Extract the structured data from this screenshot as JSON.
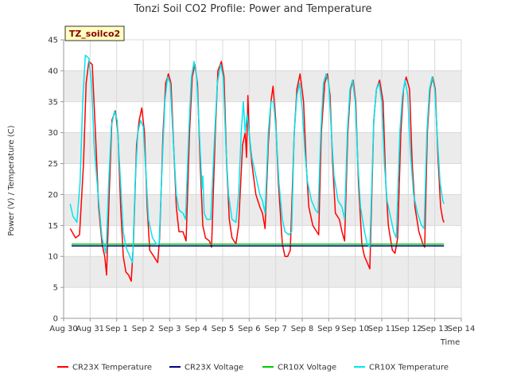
{
  "chart_data": {
    "type": "line",
    "title": "Tonzi Soil CO2 Profile: Power and Temperature",
    "xlabel": "Time",
    "ylabel": "Power (V) / Temperature (C)",
    "badge": "TZ_soilco2",
    "ylim": [
      0,
      45
    ],
    "y_ticks": [
      0,
      5,
      10,
      15,
      20,
      25,
      30,
      35,
      40,
      45
    ],
    "xlim": [
      0,
      15
    ],
    "x_ticks": [
      {
        "pos": 0,
        "label": "Aug 30"
      },
      {
        "pos": 1,
        "label": "Aug 31"
      },
      {
        "pos": 2,
        "label": "Sep 1"
      },
      {
        "pos": 3,
        "label": "Sep 2"
      },
      {
        "pos": 4,
        "label": "Sep 3"
      },
      {
        "pos": 5,
        "label": "Sep 4"
      },
      {
        "pos": 6,
        "label": "Sep 5"
      },
      {
        "pos": 7,
        "label": "Sep 6"
      },
      {
        "pos": 8,
        "label": "Sep 7"
      },
      {
        "pos": 9,
        "label": "Sep 8"
      },
      {
        "pos": 10,
        "label": "Sep 9"
      },
      {
        "pos": 11,
        "label": "Sep 10"
      },
      {
        "pos": 12,
        "label": "Sep 11"
      },
      {
        "pos": 13,
        "label": "Sep 12"
      },
      {
        "pos": 14,
        "label": "Sep 13"
      },
      {
        "pos": 15,
        "label": "Sep 14"
      }
    ],
    "series": [
      {
        "name": "CR23X Temperature",
        "color": "#ff0000",
        "points": [
          [
            0.25,
            14.5
          ],
          [
            0.45,
            13.0
          ],
          [
            0.6,
            13.5
          ],
          [
            0.75,
            25
          ],
          [
            0.85,
            38
          ],
          [
            0.95,
            41.5
          ],
          [
            1.08,
            41
          ],
          [
            1.2,
            30
          ],
          [
            1.32,
            18
          ],
          [
            1.45,
            12
          ],
          [
            1.55,
            10
          ],
          [
            1.62,
            7
          ],
          [
            1.72,
            20
          ],
          [
            1.82,
            32
          ],
          [
            1.95,
            33.5
          ],
          [
            2.05,
            30
          ],
          [
            2.15,
            18
          ],
          [
            2.25,
            10
          ],
          [
            2.35,
            7.5
          ],
          [
            2.45,
            7
          ],
          [
            2.55,
            6
          ],
          [
            2.63,
            12
          ],
          [
            2.75,
            28
          ],
          [
            2.85,
            32
          ],
          [
            2.95,
            34
          ],
          [
            3.05,
            30
          ],
          [
            3.15,
            18
          ],
          [
            3.25,
            11
          ],
          [
            3.4,
            10
          ],
          [
            3.55,
            9
          ],
          [
            3.62,
            13
          ],
          [
            3.75,
            30
          ],
          [
            3.85,
            38
          ],
          [
            3.95,
            39.5
          ],
          [
            4.05,
            38
          ],
          [
            4.15,
            28
          ],
          [
            4.25,
            18
          ],
          [
            4.35,
            14
          ],
          [
            4.5,
            14
          ],
          [
            4.62,
            12.5
          ],
          [
            4.75,
            30
          ],
          [
            4.85,
            39
          ],
          [
            4.95,
            41
          ],
          [
            5.05,
            38
          ],
          [
            5.15,
            25
          ],
          [
            5.25,
            15
          ],
          [
            5.35,
            13
          ],
          [
            5.5,
            12.5
          ],
          [
            5.58,
            11.5
          ],
          [
            5.72,
            30
          ],
          [
            5.82,
            40
          ],
          [
            5.95,
            41.5
          ],
          [
            6.05,
            39
          ],
          [
            6.15,
            25
          ],
          [
            6.25,
            16
          ],
          [
            6.35,
            13
          ],
          [
            6.5,
            12
          ],
          [
            6.6,
            15
          ],
          [
            6.75,
            28
          ],
          [
            6.85,
            30
          ],
          [
            6.9,
            26
          ],
          [
            6.95,
            36
          ],
          [
            7.0,
            30
          ],
          [
            7.1,
            25
          ],
          [
            7.25,
            20
          ],
          [
            7.4,
            18
          ],
          [
            7.5,
            17
          ],
          [
            7.6,
            14.5
          ],
          [
            7.72,
            28
          ],
          [
            7.82,
            35
          ],
          [
            7.9,
            37.5
          ],
          [
            8.0,
            32
          ],
          [
            8.1,
            22
          ],
          [
            8.25,
            12
          ],
          [
            8.35,
            10
          ],
          [
            8.45,
            10
          ],
          [
            8.55,
            11
          ],
          [
            8.7,
            30
          ],
          [
            8.8,
            37
          ],
          [
            8.92,
            39.5
          ],
          [
            9.05,
            35
          ],
          [
            9.15,
            25
          ],
          [
            9.25,
            18
          ],
          [
            9.4,
            15
          ],
          [
            9.55,
            14
          ],
          [
            9.62,
            13.5
          ],
          [
            9.72,
            30
          ],
          [
            9.85,
            38
          ],
          [
            9.95,
            39.5
          ],
          [
            10.05,
            36
          ],
          [
            10.15,
            25
          ],
          [
            10.25,
            17
          ],
          [
            10.4,
            16
          ],
          [
            10.5,
            14
          ],
          [
            10.6,
            12.5
          ],
          [
            10.72,
            30
          ],
          [
            10.82,
            37
          ],
          [
            10.92,
            38.5
          ],
          [
            11.02,
            35
          ],
          [
            11.12,
            22
          ],
          [
            11.25,
            12
          ],
          [
            11.35,
            10
          ],
          [
            11.45,
            9
          ],
          [
            11.55,
            8
          ],
          [
            11.7,
            32
          ],
          [
            11.8,
            37
          ],
          [
            11.92,
            38.5
          ],
          [
            12.05,
            35
          ],
          [
            12.15,
            22
          ],
          [
            12.25,
            15
          ],
          [
            12.4,
            11
          ],
          [
            12.5,
            10.5
          ],
          [
            12.6,
            13
          ],
          [
            12.72,
            30
          ],
          [
            12.82,
            37
          ],
          [
            12.92,
            39
          ],
          [
            13.05,
            37
          ],
          [
            13.15,
            25
          ],
          [
            13.25,
            18
          ],
          [
            13.4,
            14
          ],
          [
            13.55,
            12
          ],
          [
            13.62,
            11.5
          ],
          [
            13.72,
            30
          ],
          [
            13.82,
            37
          ],
          [
            13.92,
            39
          ],
          [
            14.02,
            37
          ],
          [
            14.12,
            26
          ],
          [
            14.22,
            18
          ],
          [
            14.3,
            16
          ],
          [
            14.35,
            15.5
          ]
        ]
      },
      {
        "name": "CR23X Voltage",
        "color": "#00008b",
        "points": [
          [
            0.3,
            11.7
          ],
          [
            14.35,
            11.7
          ]
        ]
      },
      {
        "name": "CR10X Voltage",
        "color": "#00cc00",
        "points": [
          [
            0.3,
            12.0
          ],
          [
            14.35,
            12.0
          ]
        ]
      },
      {
        "name": "CR10X Temperature",
        "color": "#00e5ee",
        "points": [
          [
            0.25,
            18.5
          ],
          [
            0.35,
            16.5
          ],
          [
            0.5,
            15.5
          ],
          [
            0.62,
            22
          ],
          [
            0.72,
            35
          ],
          [
            0.82,
            42.5
          ],
          [
            0.95,
            42
          ],
          [
            1.05,
            38
          ],
          [
            1.15,
            28
          ],
          [
            1.3,
            20
          ],
          [
            1.45,
            13
          ],
          [
            1.6,
            10.5
          ],
          [
            1.7,
            22
          ],
          [
            1.8,
            31
          ],
          [
            1.92,
            33.5
          ],
          [
            2.02,
            32
          ],
          [
            2.12,
            24
          ],
          [
            2.25,
            14
          ],
          [
            2.35,
            11.5
          ],
          [
            2.5,
            10
          ],
          [
            2.6,
            9
          ],
          [
            2.7,
            22
          ],
          [
            2.8,
            30
          ],
          [
            2.9,
            32
          ],
          [
            3.0,
            31
          ],
          [
            3.1,
            24
          ],
          [
            3.2,
            16
          ],
          [
            3.35,
            13
          ],
          [
            3.5,
            12
          ],
          [
            3.6,
            12
          ],
          [
            3.72,
            25
          ],
          [
            3.82,
            35
          ],
          [
            3.92,
            39
          ],
          [
            4.02,
            38
          ],
          [
            4.12,
            30
          ],
          [
            4.25,
            20
          ],
          [
            4.35,
            17.5
          ],
          [
            4.5,
            17
          ],
          [
            4.6,
            16
          ],
          [
            4.72,
            30
          ],
          [
            4.82,
            39
          ],
          [
            4.92,
            41.5
          ],
          [
            5.02,
            39
          ],
          [
            5.12,
            30
          ],
          [
            5.22,
            21
          ],
          [
            5.25,
            23
          ],
          [
            5.3,
            17
          ],
          [
            5.4,
            16
          ],
          [
            5.55,
            16
          ],
          [
            5.7,
            30
          ],
          [
            5.8,
            38
          ],
          [
            5.92,
            41
          ],
          [
            6.02,
            39
          ],
          [
            6.12,
            28
          ],
          [
            6.22,
            20
          ],
          [
            6.35,
            16
          ],
          [
            6.5,
            15.5
          ],
          [
            6.6,
            20
          ],
          [
            6.7,
            30
          ],
          [
            6.78,
            35
          ],
          [
            6.85,
            30
          ],
          [
            6.92,
            33
          ],
          [
            7.0,
            30
          ],
          [
            7.1,
            26
          ],
          [
            7.25,
            23
          ],
          [
            7.4,
            20
          ],
          [
            7.5,
            19
          ],
          [
            7.6,
            17
          ],
          [
            7.72,
            30
          ],
          [
            7.82,
            35
          ],
          [
            7.92,
            35
          ],
          [
            8.02,
            30
          ],
          [
            8.12,
            22
          ],
          [
            8.25,
            16
          ],
          [
            8.35,
            14
          ],
          [
            8.5,
            13.5
          ],
          [
            8.6,
            14
          ],
          [
            8.7,
            30
          ],
          [
            8.8,
            36
          ],
          [
            8.9,
            38
          ],
          [
            9.0,
            34
          ],
          [
            9.1,
            27
          ],
          [
            9.2,
            22
          ],
          [
            9.35,
            19
          ],
          [
            9.5,
            17.5
          ],
          [
            9.6,
            17
          ],
          [
            9.7,
            30
          ],
          [
            9.8,
            38
          ],
          [
            9.9,
            39.5
          ],
          [
            10.0,
            38
          ],
          [
            10.1,
            30
          ],
          [
            10.2,
            23
          ],
          [
            10.35,
            19
          ],
          [
            10.5,
            18
          ],
          [
            10.6,
            16
          ],
          [
            10.7,
            30
          ],
          [
            10.8,
            37
          ],
          [
            10.9,
            38.5
          ],
          [
            11.0,
            35
          ],
          [
            11.1,
            25
          ],
          [
            11.2,
            18
          ],
          [
            11.35,
            14
          ],
          [
            11.45,
            12
          ],
          [
            11.55,
            11.5
          ],
          [
            11.7,
            32
          ],
          [
            11.8,
            37
          ],
          [
            11.9,
            38
          ],
          [
            12.0,
            35
          ],
          [
            12.1,
            25
          ],
          [
            12.2,
            19
          ],
          [
            12.35,
            16
          ],
          [
            12.45,
            14
          ],
          [
            12.55,
            13
          ],
          [
            12.68,
            30
          ],
          [
            12.78,
            36
          ],
          [
            12.88,
            38.5
          ],
          [
            12.98,
            36
          ],
          [
            13.08,
            27
          ],
          [
            13.2,
            20
          ],
          [
            13.35,
            17
          ],
          [
            13.5,
            15
          ],
          [
            13.6,
            14.5
          ],
          [
            13.7,
            30
          ],
          [
            13.8,
            37
          ],
          [
            13.9,
            39
          ],
          [
            14.0,
            37
          ],
          [
            14.1,
            29
          ],
          [
            14.2,
            22
          ],
          [
            14.3,
            19
          ],
          [
            14.35,
            18.5
          ]
        ]
      }
    ],
    "legend_position": "bottom"
  }
}
